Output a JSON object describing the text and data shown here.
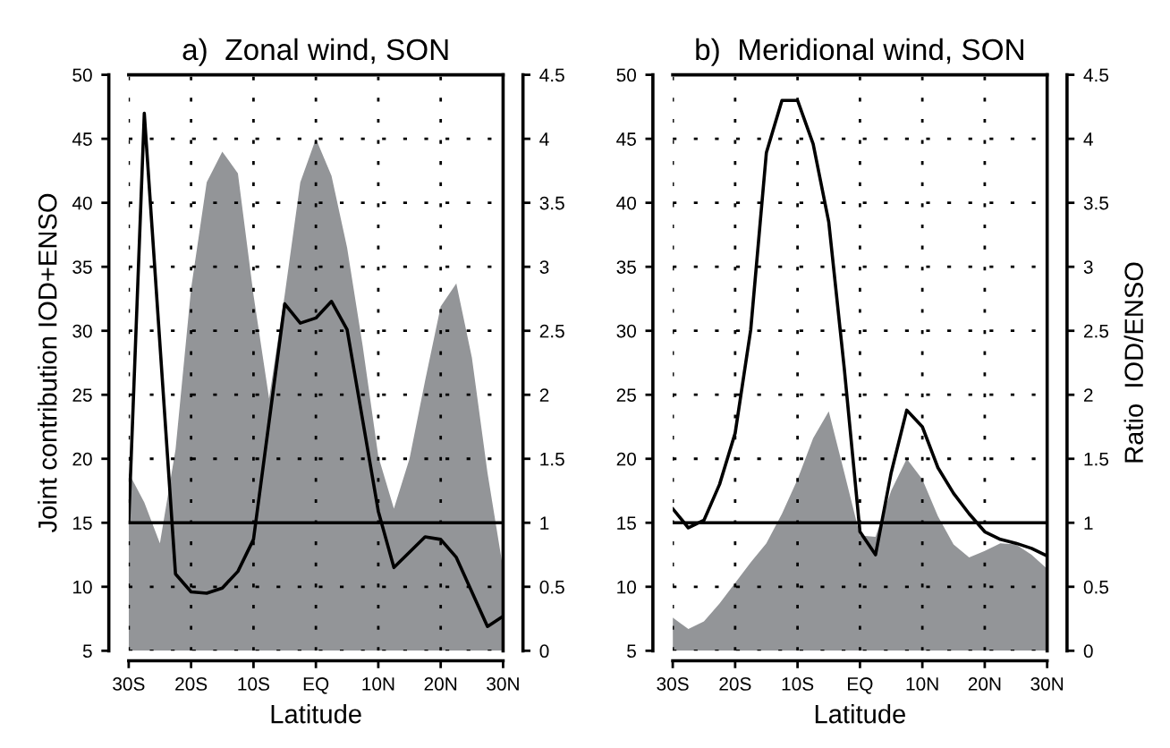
{
  "chart_data": [
    {
      "type": "area",
      "title": "a)  Zonal wind, SON",
      "xlabel": "Latitude",
      "ylabel": "Joint contribution IOD+ENSO",
      "xlim": [
        -30,
        30
      ],
      "xticks": [
        {
          "value": -30,
          "label": "30S"
        },
        {
          "value": -20,
          "label": "20S"
        },
        {
          "value": -10,
          "label": "10S"
        },
        {
          "value": 0,
          "label": "EQ"
        },
        {
          "value": 10,
          "label": "10N"
        },
        {
          "value": 20,
          "label": "20N"
        },
        {
          "value": 30,
          "label": "30N"
        }
      ],
      "ylim": [
        5,
        50
      ],
      "yticks": [
        5,
        10,
        15,
        20,
        25,
        30,
        35,
        40,
        45,
        50
      ],
      "y2lim": [
        0,
        4.5
      ],
      "y2ticks": [
        0,
        0.5,
        1,
        1.5,
        2,
        2.5,
        3,
        3.5,
        4,
        4.5
      ],
      "grid": true,
      "ref_lines": [
        {
          "axis": "y2",
          "value": 1,
          "color": "#000000"
        }
      ],
      "series": [
        {
          "color": "#939598",
          "x": [
            -30,
            -27.5,
            -25,
            -22.5,
            -20,
            -17.5,
            -15,
            -12.5,
            -10,
            -7.5,
            -5,
            -2.5,
            0,
            2.5,
            5,
            7.5,
            10,
            12.5,
            15,
            17.5,
            20,
            22.5,
            25,
            27.5,
            30
          ],
          "values": [
            18.9,
            16.6,
            13.4,
            20.7,
            33.3,
            41.6,
            44,
            42.3,
            32.8,
            24.7,
            32.8,
            41.6,
            45,
            42.1,
            36.5,
            28.8,
            20.2,
            16.1,
            20,
            26.1,
            31.9,
            33.7,
            27.9,
            18.9,
            11.4
          ]
        },
        {
          "type": "line",
          "axis": "y2",
          "color": "#000000",
          "x": [
            -30,
            -27.5,
            -22.5,
            -20,
            -17.5,
            -15,
            -12.5,
            -10,
            -5,
            -2.5,
            0,
            2.5,
            5,
            10,
            12.5,
            17.5,
            20,
            22.5,
            27.5,
            30
          ],
          "values": [
            1.0,
            4.2,
            0.6,
            0.46,
            0.45,
            0.49,
            0.62,
            0.87,
            2.71,
            2.56,
            2.6,
            2.73,
            2.51,
            1.09,
            0.65,
            0.89,
            0.87,
            0.73,
            0.19,
            0.27
          ]
        }
      ]
    },
    {
      "type": "area",
      "title": "b)  Meridional wind, SON",
      "xlabel": "Latitude",
      "y2label": "Ratio  IOD/ENSO",
      "xlim": [
        -30,
        30
      ],
      "xticks": [
        {
          "value": -30,
          "label": "30S"
        },
        {
          "value": -20,
          "label": "20S"
        },
        {
          "value": -10,
          "label": "10S"
        },
        {
          "value": 0,
          "label": "EQ"
        },
        {
          "value": 10,
          "label": "10N"
        },
        {
          "value": 20,
          "label": "20N"
        },
        {
          "value": 30,
          "label": "30N"
        }
      ],
      "ylim": [
        5,
        50
      ],
      "yticks": [
        5,
        10,
        15,
        20,
        25,
        30,
        35,
        40,
        45,
        50
      ],
      "y2lim": [
        0,
        4.5
      ],
      "y2ticks": [
        0,
        0.5,
        1,
        1.5,
        2,
        2.5,
        3,
        3.5,
        4,
        4.5
      ],
      "grid": true,
      "ref_lines": [
        {
          "axis": "y2",
          "value": 1,
          "color": "#000000"
        }
      ],
      "series": [
        {
          "color": "#939598",
          "x": [
            -30,
            -27.5,
            -25,
            -22.5,
            -20,
            -17.5,
            -15,
            -12.5,
            -10,
            -7.5,
            -5,
            -2.5,
            0,
            2.5,
            5,
            7.5,
            10,
            12.5,
            15,
            17.5,
            20,
            22.5,
            25,
            27.5,
            30
          ],
          "values": [
            7.6,
            6.7,
            7.3,
            8.7,
            10.3,
            11.9,
            13.4,
            15.7,
            18.4,
            21.6,
            23.7,
            18.9,
            14,
            13.9,
            17.5,
            20,
            18.4,
            15.5,
            13.3,
            12.3,
            12.8,
            13.4,
            13.3,
            12.5,
            11.4
          ]
        },
        {
          "type": "line",
          "axis": "y2",
          "color": "#000000",
          "x": [
            -30,
            -27.5,
            -25,
            -22.5,
            -20,
            -17.5,
            -15,
            -12.5,
            -10,
            -7.5,
            -5,
            -2.5,
            0,
            2.5,
            5,
            7.5,
            10,
            12.5,
            15,
            17.5,
            20,
            22.5,
            25,
            27.5,
            30
          ],
          "values": [
            1.11,
            0.96,
            1.02,
            1.3,
            1.7,
            2.51,
            3.89,
            4.3,
            4.3,
            3.96,
            3.35,
            2.2,
            0.93,
            0.75,
            1.39,
            1.88,
            1.75,
            1.43,
            1.23,
            1.07,
            0.93,
            0.87,
            0.84,
            0.8,
            0.74
          ]
        }
      ]
    }
  ]
}
